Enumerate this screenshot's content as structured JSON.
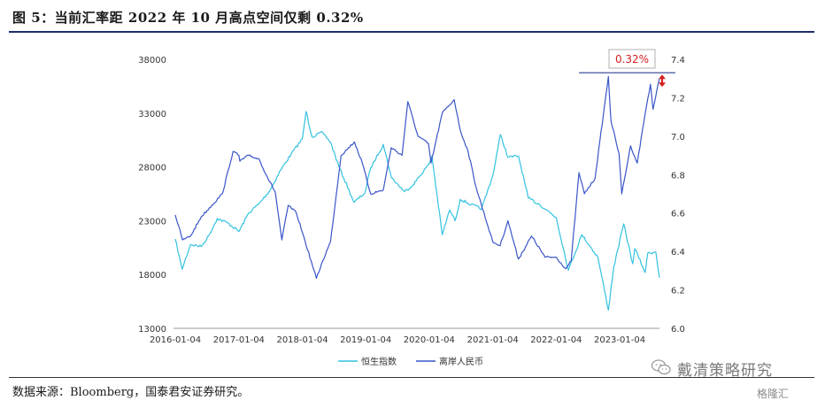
{
  "header": {
    "title": "图 5：当前汇率距 2022 年 10 月高点空间仅剩 0.32%",
    "source": "数据来源：Bloomberg，国泰君安证券研究。"
  },
  "watermark": {
    "text": "戴清策略研究",
    "sub": "格隆汇",
    "icon": "wechat-icon"
  },
  "chart_data": {
    "type": "line",
    "x_ticks": [
      "2016-01-04",
      "2017-01-04",
      "2018-01-04",
      "2019-01-04",
      "2020-01-04",
      "2021-01-04",
      "2022-01-04",
      "2023-01-04"
    ],
    "y_left": {
      "ticks": [
        "38000",
        "33000",
        "28000",
        "23000",
        "18000",
        "13000"
      ],
      "lim": [
        13000,
        38000
      ]
    },
    "y_right": {
      "ticks": [
        "7.4",
        "7.2",
        "7.0",
        "6.8",
        "6.6",
        "6.4",
        "6.2",
        "6.0"
      ],
      "lim": [
        6.0,
        7.4
      ]
    },
    "annotation": {
      "label": "0.32%",
      "ref_value": 7.33
    },
    "colors": {
      "hsi": "#33c2e0",
      "cnh": "#3a55c8",
      "ref_line": "#2f3f8f",
      "arrow": "#d32020",
      "box_text": "#d32020"
    },
    "series": [
      {
        "name": "恒生指数",
        "axis": "left",
        "color": "#33c2e0",
        "points": [
          [
            "2016-01-04",
            21300
          ],
          [
            "2016-02-12",
            18500
          ],
          [
            "2016-04-01",
            20800
          ],
          [
            "2016-06-01",
            20600
          ],
          [
            "2016-07-15",
            21600
          ],
          [
            "2016-09-01",
            23200
          ],
          [
            "2016-11-01",
            22800
          ],
          [
            "2017-01-04",
            22000
          ],
          [
            "2017-03-01",
            23700
          ],
          [
            "2017-05-01",
            24600
          ],
          [
            "2017-07-01",
            25800
          ],
          [
            "2017-09-01",
            27700
          ],
          [
            "2017-11-01",
            29200
          ],
          [
            "2018-01-04",
            30600
          ],
          [
            "2018-01-26",
            33150
          ],
          [
            "2018-03-01",
            30800
          ],
          [
            "2018-05-01",
            31200
          ],
          [
            "2018-06-15",
            30300
          ],
          [
            "2018-08-01",
            28100
          ],
          [
            "2018-10-29",
            24700
          ],
          [
            "2018-12-31",
            25600
          ],
          [
            "2019-02-01",
            27900
          ],
          [
            "2019-04-15",
            30100
          ],
          [
            "2019-06-01",
            27000
          ],
          [
            "2019-08-15",
            25700
          ],
          [
            "2019-10-01",
            26300
          ],
          [
            "2019-12-31",
            28200
          ],
          [
            "2020-01-20",
            29000
          ],
          [
            "2020-03-19",
            21700
          ],
          [
            "2020-05-01",
            24000
          ],
          [
            "2020-06-01",
            23000
          ],
          [
            "2020-07-01",
            25000
          ],
          [
            "2020-09-01",
            24500
          ],
          [
            "2020-11-01",
            24100
          ],
          [
            "2021-01-04",
            27200
          ],
          [
            "2021-02-17",
            31000
          ],
          [
            "2021-04-01",
            28900
          ],
          [
            "2021-06-01",
            29000
          ],
          [
            "2021-07-27",
            25100
          ],
          [
            "2021-10-01",
            24500
          ],
          [
            "2022-01-04",
            23300
          ],
          [
            "2022-03-15",
            18400
          ],
          [
            "2022-06-01",
            21700
          ],
          [
            "2022-09-01",
            19600
          ],
          [
            "2022-10-31",
            14700
          ],
          [
            "2022-12-01",
            18700
          ],
          [
            "2023-01-27",
            22700
          ],
          [
            "2023-03-20",
            19000
          ],
          [
            "2023-04-01",
            20400
          ],
          [
            "2023-05-31",
            18200
          ],
          [
            "2023-06-15",
            20000
          ],
          [
            "2023-07-31",
            20100
          ],
          [
            "2023-08-21",
            17700
          ]
        ]
      },
      {
        "name": "离岸人民币",
        "axis": "right",
        "color": "#3a55c8",
        "points": [
          [
            "2016-01-04",
            6.59
          ],
          [
            "2016-02-15",
            6.46
          ],
          [
            "2016-04-01",
            6.48
          ],
          [
            "2016-06-01",
            6.58
          ],
          [
            "2016-08-01",
            6.64
          ],
          [
            "2016-10-01",
            6.7
          ],
          [
            "2016-12-01",
            6.92
          ],
          [
            "2017-01-04",
            6.9
          ],
          [
            "2017-01-10",
            6.87
          ],
          [
            "2017-03-01",
            6.9
          ],
          [
            "2017-05-01",
            6.88
          ],
          [
            "2017-06-15",
            6.79
          ],
          [
            "2017-08-01",
            6.71
          ],
          [
            "2017-09-08",
            6.46
          ],
          [
            "2017-10-15",
            6.64
          ],
          [
            "2017-12-01",
            6.6
          ],
          [
            "2018-01-04",
            6.5
          ],
          [
            "2018-03-26",
            6.26
          ],
          [
            "2018-05-01",
            6.35
          ],
          [
            "2018-06-15",
            6.45
          ],
          [
            "2018-08-15",
            6.9
          ],
          [
            "2018-10-31",
            6.97
          ],
          [
            "2018-12-15",
            6.86
          ],
          [
            "2019-02-01",
            6.7
          ],
          [
            "2019-04-15",
            6.72
          ],
          [
            "2019-05-31",
            6.94
          ],
          [
            "2019-08-01",
            6.9
          ],
          [
            "2019-09-03",
            7.18
          ],
          [
            "2019-11-01",
            7.0
          ],
          [
            "2019-12-31",
            6.96
          ],
          [
            "2020-01-15",
            6.86
          ],
          [
            "2020-03-19",
            7.12
          ],
          [
            "2020-05-27",
            7.19
          ],
          [
            "2020-07-01",
            7.03
          ],
          [
            "2020-08-15",
            6.92
          ],
          [
            "2020-10-01",
            6.73
          ],
          [
            "2021-01-04",
            6.45
          ],
          [
            "2021-02-15",
            6.43
          ],
          [
            "2021-04-01",
            6.56
          ],
          [
            "2021-05-31",
            6.36
          ],
          [
            "2021-08-15",
            6.48
          ],
          [
            "2021-11-01",
            6.37
          ],
          [
            "2022-01-04",
            6.37
          ],
          [
            "2022-02-28",
            6.31
          ],
          [
            "2022-03-31",
            6.35
          ],
          [
            "2022-05-15",
            6.81
          ],
          [
            "2022-06-15",
            6.7
          ],
          [
            "2022-08-15",
            6.78
          ],
          [
            "2022-10-31",
            7.31
          ],
          [
            "2022-11-15",
            7.08
          ],
          [
            "2022-12-31",
            6.91
          ],
          [
            "2023-01-16",
            6.7
          ],
          [
            "2023-03-08",
            6.95
          ],
          [
            "2023-04-15",
            6.86
          ],
          [
            "2023-05-31",
            7.12
          ],
          [
            "2023-06-30",
            7.27
          ],
          [
            "2023-07-15",
            7.14
          ],
          [
            "2023-08-21",
            7.3
          ]
        ]
      }
    ],
    "grid": false,
    "legend": "bottom-center"
  }
}
